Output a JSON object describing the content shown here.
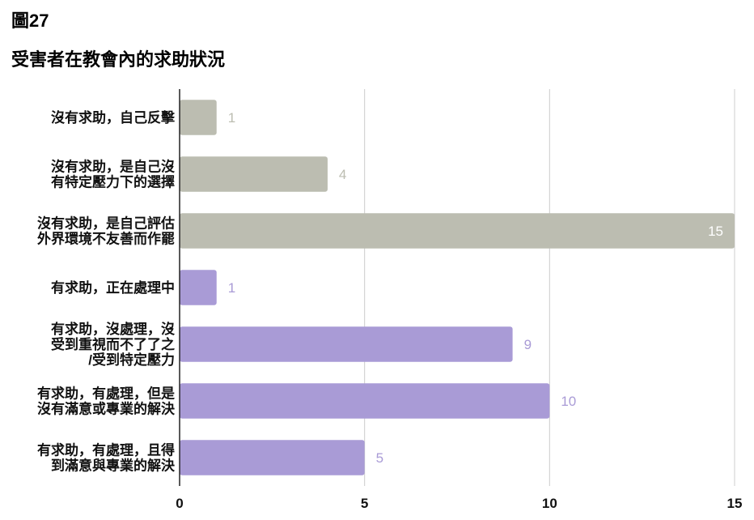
{
  "figure_label": "圖27",
  "chart_data": {
    "type": "bar",
    "orientation": "horizontal",
    "title": "受害者在教會內的求助狀況",
    "categories": [
      [
        "沒有求助，自己反擊"
      ],
      [
        "沒有求助，是自己沒",
        "有特定壓力下的選擇"
      ],
      [
        "沒有求助，是自己評估",
        "外界環境不友善而作罷"
      ],
      [
        "有求助，正在處理中"
      ],
      [
        "有求助，沒處理，沒",
        "受到重視而不了了之",
        "/受到特定壓力"
      ],
      [
        "有求助，有處理，但是",
        "沒有滿意或專業的解決"
      ],
      [
        "有求助，有處理，且得",
        "到滿意與專業的解決"
      ]
    ],
    "values": [
      1,
      4,
      15,
      1,
      9,
      10,
      5
    ],
    "bar_colors": [
      "#bcbdb1",
      "#bcbdb1",
      "#bcbdb1",
      "#a99bd6",
      "#a99bd6",
      "#a99bd6",
      "#a99bd6"
    ],
    "label_colors": [
      "#bcbdb1",
      "#bcbdb1",
      "#ffffff",
      "#a99bd6",
      "#a99bd6",
      "#a99bd6",
      "#a99bd6"
    ],
    "xlim": [
      0,
      15
    ],
    "xticks": [
      0,
      5,
      10,
      15
    ],
    "grid": true,
    "xlabel": "",
    "ylabel": ""
  }
}
